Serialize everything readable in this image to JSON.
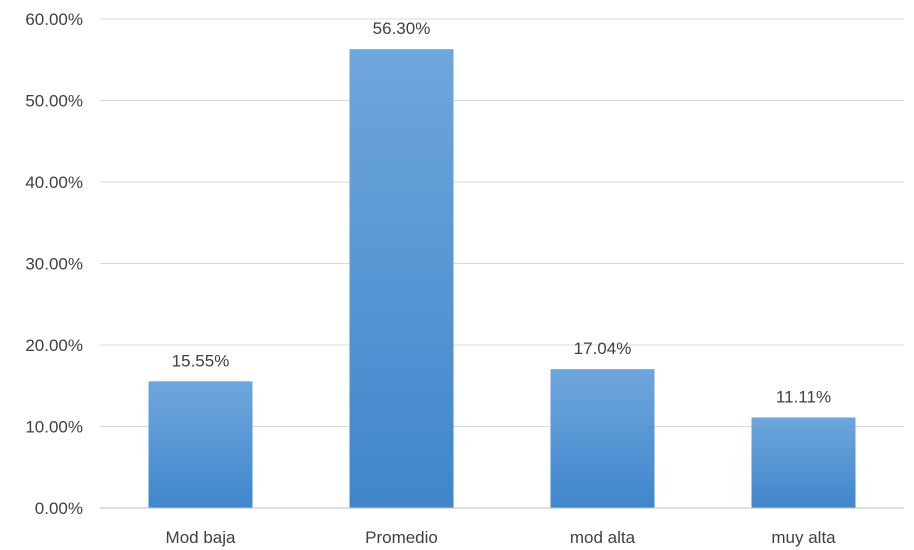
{
  "chart_data": {
    "type": "bar",
    "title": "",
    "xlabel": "",
    "ylabel": "",
    "categories": [
      "Mod baja",
      "Promedio",
      "mod alta",
      "muy alta"
    ],
    "values": [
      15.55,
      56.3,
      17.04,
      11.11
    ],
    "data_labels": [
      "15.55%",
      "56.30%",
      "17.04%",
      "11.11%"
    ],
    "ylim": [
      0,
      60
    ],
    "yticks": [
      0,
      10,
      20,
      30,
      40,
      50,
      60
    ],
    "ytick_labels": [
      "0.00%",
      "10.00%",
      "20.00%",
      "30.00%",
      "40.00%",
      "50.00%",
      "60.00%"
    ],
    "grid": true,
    "legend": "none",
    "colors": {
      "bar_top": "#6fa6dc",
      "bar_bottom": "#3f86cc",
      "gridline": "#d9d9d9",
      "axis_line": "#bfbfbf",
      "text": "#404040"
    }
  }
}
